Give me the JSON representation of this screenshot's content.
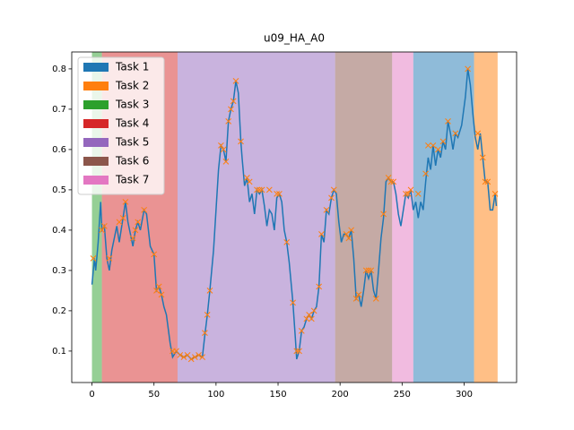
{
  "chart_data": {
    "type": "line",
    "title": "u09_HA_A0",
    "xlim": [
      -16.3,
      342.3
    ],
    "ylim": [
      0.022,
      0.842
    ],
    "xticks": [
      0,
      50,
      100,
      150,
      200,
      250,
      300
    ],
    "yticks": [
      0.1,
      0.2,
      0.3,
      0.4,
      0.5,
      0.6,
      0.7,
      0.8
    ],
    "legend": "upper left",
    "spans": [
      {
        "name": "Task 1",
        "start": 259,
        "end": 308,
        "color": "#1f77b4"
      },
      {
        "name": "Task 2",
        "start": 308,
        "end": 327,
        "color": "#ff7f0e"
      },
      {
        "name": "Task 3",
        "start": 0,
        "end": 8,
        "color": "#2ca02c"
      },
      {
        "name": "Task 4",
        "start": 8,
        "end": 69,
        "color": "#d62728"
      },
      {
        "name": "Task 5",
        "start": 69,
        "end": 196,
        "color": "#9467bd"
      },
      {
        "name": "Task 6",
        "start": 196,
        "end": 242,
        "color": "#8c564b"
      },
      {
        "name": "Task 7",
        "start": 242,
        "end": 259,
        "color": "#e377c2"
      }
    ],
    "series": [
      {
        "style": "line",
        "color": "#1f77b4",
        "x": [
          0,
          2,
          3,
          5,
          7,
          8,
          10,
          12,
          14,
          16,
          18,
          20,
          22,
          25,
          27,
          29,
          31,
          33,
          35,
          37,
          39,
          42,
          44,
          47,
          50,
          52,
          54,
          56,
          58,
          60,
          63,
          65,
          68,
          71,
          74,
          77,
          80,
          83,
          86,
          89,
          91,
          93,
          95,
          98,
          100,
          102,
          104,
          106,
          108,
          110,
          112,
          114,
          116,
          118,
          120,
          121,
          123,
          125,
          127,
          129,
          131,
          133,
          135,
          137,
          139,
          141,
          143,
          145,
          147,
          149,
          151,
          153,
          155,
          157,
          159,
          162,
          164,
          165,
          167,
          169,
          171,
          173,
          175,
          177,
          179,
          181,
          183,
          185,
          187,
          189,
          191,
          193,
          195,
          197,
          199,
          201,
          203,
          205,
          207,
          209,
          211,
          213,
          215,
          217,
          219,
          221,
          223,
          225,
          227,
          229,
          231,
          233,
          235,
          237,
          239,
          241,
          243,
          245,
          247,
          249,
          251,
          253,
          255,
          257,
          259,
          261,
          263,
          265,
          267,
          269,
          271,
          273,
          275,
          277,
          279,
          281,
          283,
          285,
          287,
          289,
          291,
          293,
          295,
          298,
          301,
          303,
          305,
          307,
          309,
          311,
          313,
          315,
          317,
          319,
          321,
          323,
          325,
          326
        ],
        "values": [
          0.265,
          0.33,
          0.3,
          0.37,
          0.47,
          0.4,
          0.41,
          0.33,
          0.3,
          0.35,
          0.38,
          0.41,
          0.37,
          0.43,
          0.47,
          0.42,
          0.39,
          0.36,
          0.4,
          0.42,
          0.4,
          0.45,
          0.44,
          0.36,
          0.34,
          0.25,
          0.26,
          0.24,
          0.21,
          0.19,
          0.12,
          0.085,
          0.1,
          0.09,
          0.085,
          0.09,
          0.08,
          0.085,
          0.09,
          0.085,
          0.14,
          0.19,
          0.25,
          0.35,
          0.45,
          0.55,
          0.61,
          0.6,
          0.57,
          0.67,
          0.7,
          0.72,
          0.77,
          0.74,
          0.62,
          0.58,
          0.51,
          0.53,
          0.47,
          0.49,
          0.44,
          0.5,
          0.49,
          0.5,
          0.46,
          0.41,
          0.45,
          0.44,
          0.4,
          0.48,
          0.49,
          0.47,
          0.4,
          0.37,
          0.32,
          0.22,
          0.13,
          0.08,
          0.1,
          0.15,
          0.16,
          0.18,
          0.19,
          0.18,
          0.2,
          0.21,
          0.26,
          0.39,
          0.37,
          0.45,
          0.44,
          0.48,
          0.5,
          0.49,
          0.42,
          0.37,
          0.39,
          0.39,
          0.38,
          0.4,
          0.33,
          0.23,
          0.24,
          0.21,
          0.25,
          0.3,
          0.28,
          0.3,
          0.25,
          0.23,
          0.3,
          0.38,
          0.43,
          0.52,
          0.53,
          0.52,
          0.52,
          0.49,
          0.44,
          0.41,
          0.45,
          0.49,
          0.48,
          0.5,
          0.45,
          0.47,
          0.43,
          0.47,
          0.45,
          0.52,
          0.58,
          0.55,
          0.61,
          0.56,
          0.6,
          0.58,
          0.62,
          0.6,
          0.67,
          0.64,
          0.6,
          0.64,
          0.63,
          0.66,
          0.73,
          0.8,
          0.76,
          0.69,
          0.63,
          0.6,
          0.64,
          0.58,
          0.52,
          0.52,
          0.45,
          0.45,
          0.49,
          0.46
        ]
      },
      {
        "style": "x",
        "color": "#ff7f0e",
        "x": [
          1,
          8,
          10,
          14,
          22,
          25,
          27,
          33,
          35,
          37,
          42,
          50,
          52,
          54,
          56,
          65,
          68,
          71,
          74,
          77,
          80,
          83,
          86,
          89,
          91,
          93,
          95,
          104,
          106,
          108,
          110,
          112,
          114,
          116,
          120,
          125,
          127,
          133,
          135,
          137,
          143,
          149,
          151,
          157,
          162,
          165,
          167,
          169,
          173,
          175,
          177,
          179,
          183,
          185,
          189,
          193,
          195,
          205,
          207,
          209,
          213,
          215,
          221,
          223,
          225,
          229,
          235,
          239,
          241,
          243,
          253,
          255,
          257,
          263,
          269,
          271,
          275,
          279,
          283,
          287,
          293,
          303,
          311,
          315,
          317,
          319,
          325
        ],
        "values": [
          0.33,
          0.4,
          0.41,
          0.33,
          0.42,
          0.43,
          0.47,
          0.38,
          0.4,
          0.42,
          0.45,
          0.34,
          0.25,
          0.26,
          0.24,
          0.1,
          0.1,
          0.09,
          0.085,
          0.09,
          0.08,
          0.085,
          0.09,
          0.085,
          0.145,
          0.19,
          0.25,
          0.61,
          0.6,
          0.57,
          0.67,
          0.7,
          0.72,
          0.77,
          0.62,
          0.53,
          0.52,
          0.5,
          0.5,
          0.5,
          0.5,
          0.49,
          0.49,
          0.37,
          0.22,
          0.1,
          0.1,
          0.15,
          0.18,
          0.19,
          0.18,
          0.2,
          0.26,
          0.39,
          0.45,
          0.48,
          0.5,
          0.39,
          0.38,
          0.4,
          0.23,
          0.24,
          0.3,
          0.3,
          0.3,
          0.23,
          0.44,
          0.53,
          0.52,
          0.52,
          0.49,
          0.49,
          0.5,
          0.49,
          0.54,
          0.61,
          0.61,
          0.6,
          0.62,
          0.67,
          0.64,
          0.8,
          0.64,
          0.58,
          0.52,
          0.52,
          0.49
        ]
      }
    ]
  }
}
